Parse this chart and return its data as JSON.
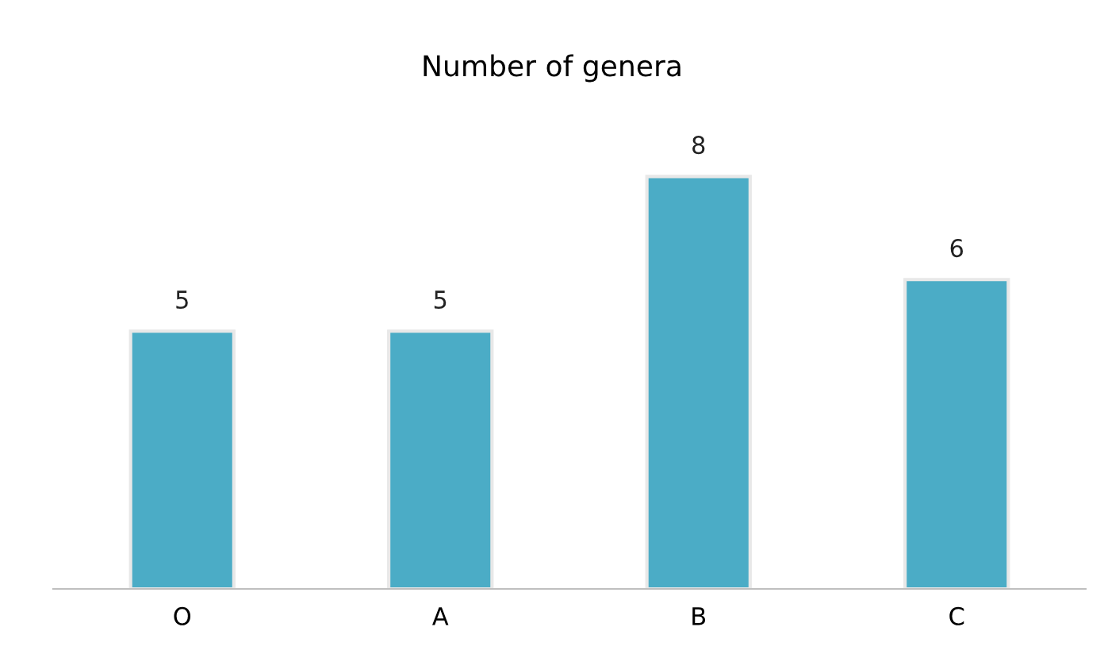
{
  "chart_data": {
    "type": "bar",
    "title": "Number of genera",
    "categories": [
      "O",
      "A",
      "B",
      "C"
    ],
    "values": [
      5,
      5,
      8,
      6
    ],
    "color": "#4bacc6",
    "data_labels": true,
    "grid": false,
    "tick_labels": "x"
  }
}
